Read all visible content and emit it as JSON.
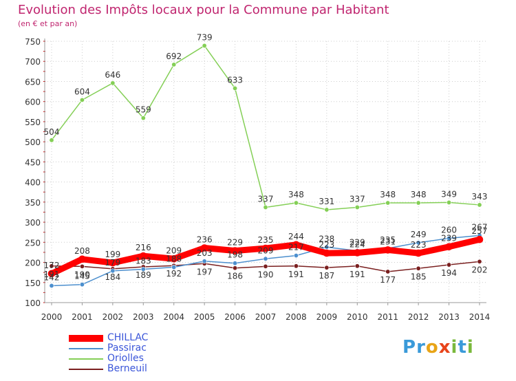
{
  "header": {
    "title": "Evolution des Impôts locaux pour la Commune par Habitant",
    "subtitle": "(en € et par an)"
  },
  "brand": {
    "letters": [
      "P",
      "r",
      "o",
      "x",
      "i",
      "t",
      "i"
    ],
    "colors": [
      "#3a9ad9",
      "#3a9ad9",
      "#e8a417",
      "#e8441b",
      "#7ab93c",
      "#3a9ad9",
      "#7ab93c"
    ]
  },
  "chart_data": {
    "type": "line",
    "title": "Evolution des Impôts locaux pour la Commune par Habitant",
    "subtitle": "(en € et par an)",
    "xlabel": "",
    "ylabel": "",
    "x": [
      2000,
      2001,
      2002,
      2003,
      2004,
      2005,
      2006,
      2007,
      2008,
      2009,
      2010,
      2011,
      2012,
      2013,
      2014
    ],
    "ylim": [
      100,
      750
    ],
    "yticks": [
      100,
      150,
      200,
      250,
      300,
      350,
      400,
      450,
      500,
      550,
      600,
      650,
      700,
      750
    ],
    "grid": true,
    "legend_position": "bottom-left",
    "series": [
      {
        "name": "CHILLAC",
        "color": "#ff0000",
        "values": [
          172,
          208,
          199,
          216,
          209,
          236,
          229,
          235,
          244,
          223,
          224,
          231,
          223,
          239,
          257
        ]
      },
      {
        "name": "Passirac",
        "color": "#4c8fce",
        "values": [
          142,
          145,
          179,
          183,
          188,
          203,
          198,
          209,
          217,
          238,
          229,
          235,
          249,
          260,
          267
        ]
      },
      {
        "name": "Oriolles",
        "color": "#84cf56",
        "values": [
          504,
          604,
          646,
          559,
          692,
          739,
          633,
          337,
          348,
          331,
          337,
          348,
          348,
          349,
          343
        ]
      },
      {
        "name": "Berneuil",
        "color": "#7a1f1f",
        "values": [
          191,
          190,
          184,
          189,
          192,
          197,
          186,
          190,
          191,
          187,
          191,
          177,
          185,
          194,
          202
        ]
      }
    ]
  }
}
